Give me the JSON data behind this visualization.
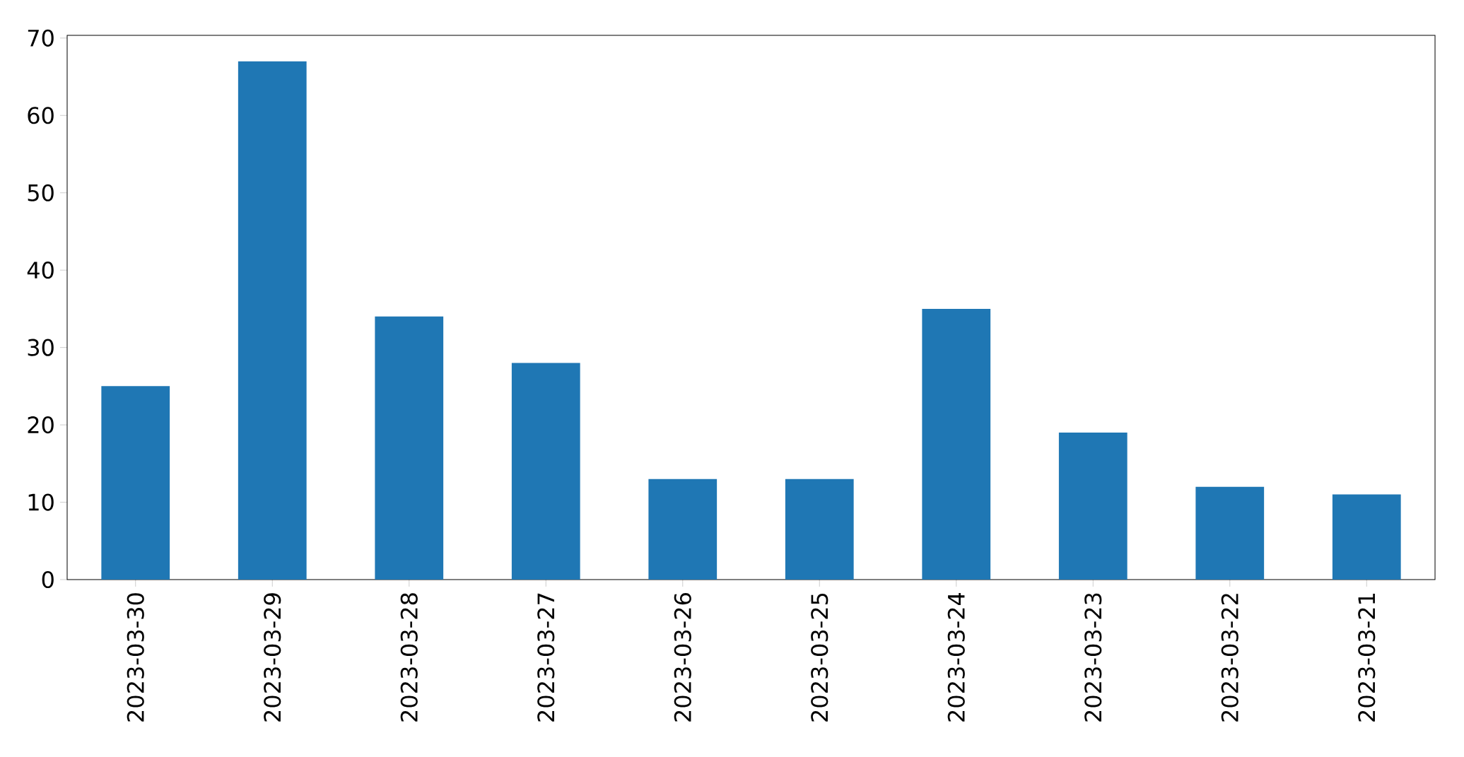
{
  "chart_data": {
    "type": "bar",
    "categories": [
      "2023-03-30",
      "2023-03-29",
      "2023-03-28",
      "2023-03-27",
      "2023-03-26",
      "2023-03-25",
      "2023-03-24",
      "2023-03-23",
      "2023-03-22",
      "2023-03-21"
    ],
    "values": [
      25,
      67,
      34,
      28,
      13,
      13,
      35,
      19,
      12,
      11
    ],
    "color": "#1f77b4",
    "ylim": [
      0,
      70.35
    ],
    "yticks": [
      0,
      10,
      20,
      30,
      40,
      50,
      60,
      70
    ]
  }
}
